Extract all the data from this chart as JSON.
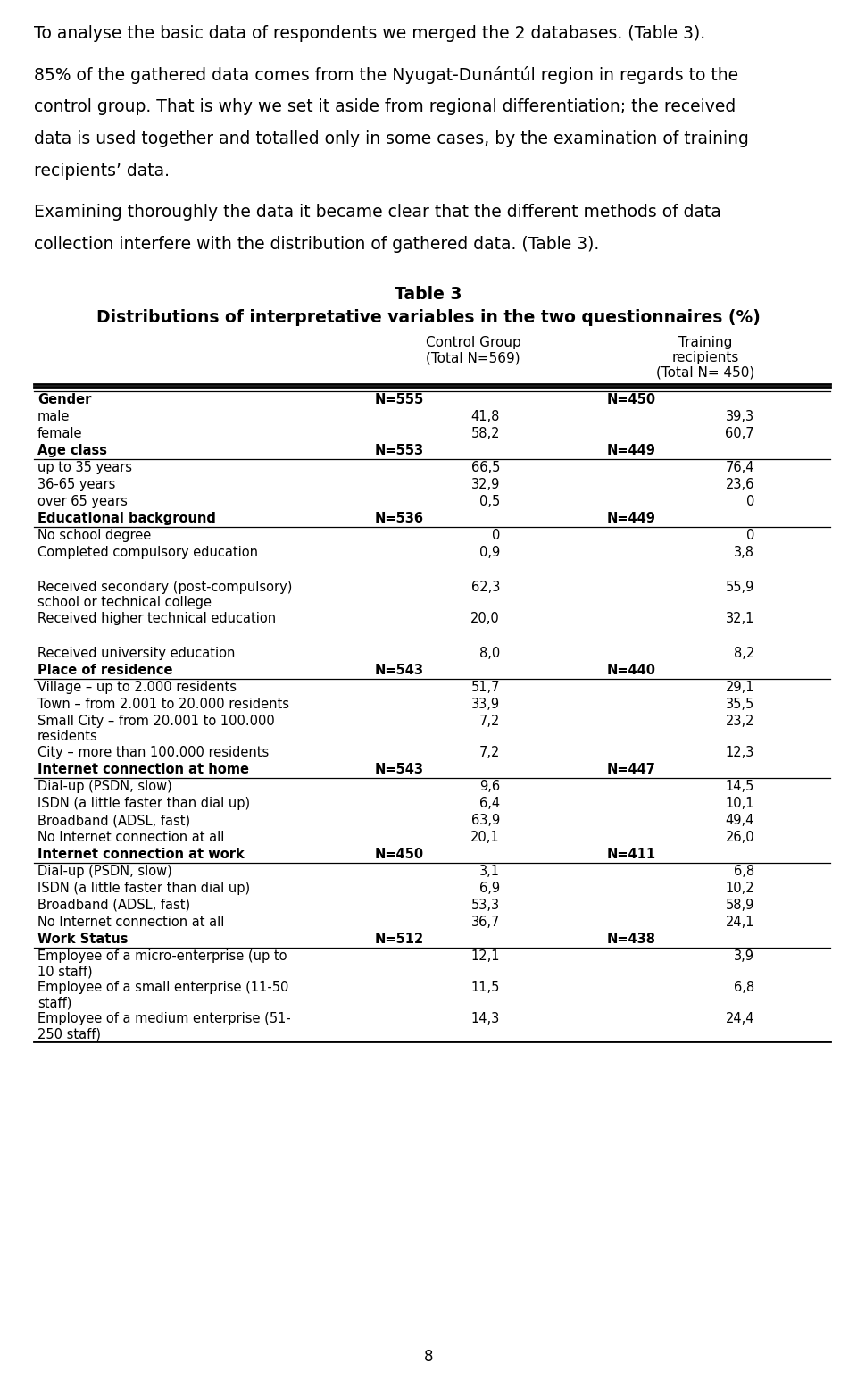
{
  "intro_paragraphs": [
    {
      "lines": [
        "To analyse the basic data of respondents we merged the 2 databases. (Table 3)."
      ],
      "justify": false
    },
    {
      "lines": [
        "85% of the gathered data comes from the Nyugat-Dunántúl region in regards to the",
        "control group. That is why we set it aside from regional differentiation; the received",
        "data is used together and totalled only in some cases, by the examination of training",
        "recipients’ data."
      ],
      "justify": true
    },
    {
      "lines": [
        "Examining thoroughly the data it became clear that the different methods of data",
        "collection interfere with the distribution of gathered data. (Table 3)."
      ],
      "justify": true
    }
  ],
  "table_title": "Table 3",
  "table_subtitle": "Distributions of interpretative variables in the two questionnaires (%)",
  "rows": [
    {
      "label": "Gender",
      "bold": true,
      "n1": "N=555",
      "n2": "N=450",
      "v1": "",
      "v2": "",
      "line_above": true,
      "extra_space_before": 0
    },
    {
      "label": "male",
      "bold": false,
      "n1": "",
      "n2": "",
      "v1": "41,8",
      "v2": "39,3",
      "line_above": false,
      "extra_space_before": 0
    },
    {
      "label": "female",
      "bold": false,
      "n1": "",
      "n2": "",
      "v1": "58,2",
      "v2": "60,7",
      "line_above": false,
      "extra_space_before": 0
    },
    {
      "label": "Age class",
      "bold": true,
      "n1": "N=553",
      "n2": "N=449",
      "v1": "",
      "v2": "",
      "line_above": false,
      "extra_space_before": 0
    },
    {
      "label": "up to 35 years",
      "bold": false,
      "n1": "",
      "n2": "",
      "v1": "66,5",
      "v2": "76,4",
      "line_above": true,
      "extra_space_before": 0
    },
    {
      "label": "36-65 years",
      "bold": false,
      "n1": "",
      "n2": "",
      "v1": "32,9",
      "v2": "23,6",
      "line_above": false,
      "extra_space_before": 0
    },
    {
      "label": "over 65 years",
      "bold": false,
      "n1": "",
      "n2": "",
      "v1": "0,5",
      "v2": "0",
      "line_above": false,
      "extra_space_before": 0
    },
    {
      "label": "Educational background",
      "bold": true,
      "n1": "N=536",
      "n2": "N=449",
      "v1": "",
      "v2": "",
      "line_above": false,
      "extra_space_before": 0
    },
    {
      "label": "No school degree",
      "bold": false,
      "n1": "",
      "n2": "",
      "v1": "0",
      "v2": "0",
      "line_above": true,
      "extra_space_before": 0
    },
    {
      "label": "Completed compulsory education",
      "bold": false,
      "n1": "",
      "n2": "",
      "v1": "0,9",
      "v2": "3,8",
      "line_above": false,
      "extra_space_before": 0
    },
    {
      "label": "",
      "bold": false,
      "n1": "",
      "n2": "",
      "v1": "",
      "v2": "",
      "line_above": false,
      "extra_space_before": 8
    },
    {
      "label": "Received secondary (post-compulsory)\nschool or technical college",
      "bold": false,
      "n1": "",
      "n2": "",
      "v1": "62,3",
      "v2": "55,9",
      "line_above": false,
      "extra_space_before": 0
    },
    {
      "label": "Received higher technical education",
      "bold": false,
      "n1": "",
      "n2": "",
      "v1": "20,0",
      "v2": "32,1",
      "line_above": false,
      "extra_space_before": 0
    },
    {
      "label": "",
      "bold": false,
      "n1": "",
      "n2": "",
      "v1": "",
      "v2": "",
      "line_above": false,
      "extra_space_before": 8
    },
    {
      "label": "Received university education",
      "bold": false,
      "n1": "",
      "n2": "",
      "v1": "8,0",
      "v2": "8,2",
      "line_above": false,
      "extra_space_before": 0
    },
    {
      "label": "Place of residence",
      "bold": true,
      "n1": "N=543",
      "n2": "N=440",
      "v1": "",
      "v2": "",
      "line_above": false,
      "extra_space_before": 0
    },
    {
      "label": "Village – up to 2.000 residents",
      "bold": false,
      "n1": "",
      "n2": "",
      "v1": "51,7",
      "v2": "29,1",
      "line_above": true,
      "extra_space_before": 0
    },
    {
      "label": "Town – from 2.001 to 20.000 residents",
      "bold": false,
      "n1": "",
      "n2": "",
      "v1": "33,9",
      "v2": "35,5",
      "line_above": false,
      "extra_space_before": 0
    },
    {
      "label": "Small City – from 20.001 to 100.000\nresidents",
      "bold": false,
      "n1": "",
      "n2": "",
      "v1": "7,2",
      "v2": "23,2",
      "line_above": false,
      "extra_space_before": 0
    },
    {
      "label": "City – more than 100.000 residents",
      "bold": false,
      "n1": "",
      "n2": "",
      "v1": "7,2",
      "v2": "12,3",
      "line_above": false,
      "extra_space_before": 0
    },
    {
      "label": "Internet connection at home",
      "bold": true,
      "n1": "N=543",
      "n2": "N=447",
      "v1": "",
      "v2": "",
      "line_above": false,
      "extra_space_before": 0
    },
    {
      "label": "Dial-up (PSDN, slow)",
      "bold": false,
      "n1": "",
      "n2": "",
      "v1": "9,6",
      "v2": "14,5",
      "line_above": true,
      "extra_space_before": 0
    },
    {
      "label": "ISDN (a little faster than dial up)",
      "bold": false,
      "n1": "",
      "n2": "",
      "v1": "6,4",
      "v2": "10,1",
      "line_above": false,
      "extra_space_before": 0
    },
    {
      "label": "Broadband (ADSL, fast)",
      "bold": false,
      "n1": "",
      "n2": "",
      "v1": "63,9",
      "v2": "49,4",
      "line_above": false,
      "extra_space_before": 0
    },
    {
      "label": "No Internet connection at all",
      "bold": false,
      "n1": "",
      "n2": "",
      "v1": "20,1",
      "v2": "26,0",
      "line_above": false,
      "extra_space_before": 0
    },
    {
      "label": "Internet connection at work",
      "bold": true,
      "n1": "N=450",
      "n2": "N=411",
      "v1": "",
      "v2": "",
      "line_above": false,
      "extra_space_before": 0
    },
    {
      "label": "Dial-up (PSDN, slow)",
      "bold": false,
      "n1": "",
      "n2": "",
      "v1": "3,1",
      "v2": "6,8",
      "line_above": true,
      "extra_space_before": 0
    },
    {
      "label": "ISDN (a little faster than dial up)",
      "bold": false,
      "n1": "",
      "n2": "",
      "v1": "6,9",
      "v2": "10,2",
      "line_above": false,
      "extra_space_before": 0
    },
    {
      "label": "Broadband (ADSL, fast)",
      "bold": false,
      "n1": "",
      "n2": "",
      "v1": "53,3",
      "v2": "58,9",
      "line_above": false,
      "extra_space_before": 0
    },
    {
      "label": "No Internet connection at all",
      "bold": false,
      "n1": "",
      "n2": "",
      "v1": "36,7",
      "v2": "24,1",
      "line_above": false,
      "extra_space_before": 0
    },
    {
      "label": "Work Status",
      "bold": true,
      "n1": "N=512",
      "n2": "N=438",
      "v1": "",
      "v2": "",
      "line_above": false,
      "extra_space_before": 0
    },
    {
      "label": "Employee of a micro-enterprise (up to\n10 staff)",
      "bold": false,
      "n1": "",
      "n2": "",
      "v1": "12,1",
      "v2": "3,9",
      "line_above": true,
      "extra_space_before": 0
    },
    {
      "label": "Employee of a small enterprise (11-50\nstaff)",
      "bold": false,
      "n1": "",
      "n2": "",
      "v1": "11,5",
      "v2": "6,8",
      "line_above": false,
      "extra_space_before": 0
    },
    {
      "label": "Employee of a medium enterprise (51-\n250 staff)",
      "bold": false,
      "n1": "",
      "n2": "",
      "v1": "14,3",
      "v2": "24,4",
      "line_above": false,
      "extra_space_before": 0
    }
  ],
  "page_number": "8",
  "bg_color": "#ffffff",
  "text_color": "#000000"
}
